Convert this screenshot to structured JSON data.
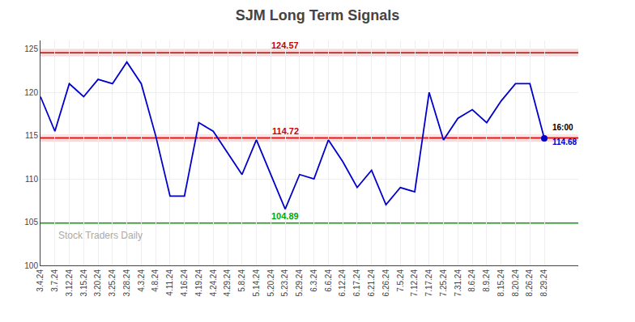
{
  "chart_data": {
    "type": "line",
    "title": "SJM Long Term Signals",
    "categories": [
      "3.4.24",
      "3.7.24",
      "3.12.24",
      "3.15.24",
      "3.20.24",
      "3.25.24",
      "3.28.24",
      "4.3.24",
      "4.8.24",
      "4.11.24",
      "4.16.24",
      "4.19.24",
      "4.24.24",
      "4.29.24",
      "5.8.24",
      "5.14.24",
      "5.20.24",
      "5.23.24",
      "5.29.24",
      "6.3.24",
      "6.6.24",
      "6.12.24",
      "6.17.24",
      "6.21.24",
      "6.26.24",
      "7.5.24",
      "7.12.24",
      "7.17.24",
      "7.25.24",
      "7.31.24",
      "8.6.24",
      "8.9.24",
      "8.15.24",
      "8.20.24",
      "8.26.24",
      "8.29.24"
    ],
    "values": [
      119.5,
      115.5,
      121.0,
      119.5,
      121.5,
      121.0,
      123.5,
      121.0,
      115.0,
      108.0,
      108.0,
      116.5,
      115.5,
      113.0,
      110.5,
      114.5,
      110.5,
      106.5,
      110.5,
      110.0,
      114.5,
      112.0,
      109.0,
      111.0,
      107.0,
      109.0,
      108.5,
      120.0,
      114.5,
      117.0,
      118.0,
      116.5,
      119.0,
      121.0,
      121.0,
      114.68
    ],
    "color": "#0000cc",
    "ylim": [
      100,
      126
    ],
    "yticks": [
      100,
      105,
      110,
      115,
      120,
      125
    ],
    "grid": true,
    "reference_lines": [
      {
        "value": 124.57,
        "label": "124.57",
        "color": "#cc0000",
        "band_half_width": 0.4
      },
      {
        "value": 114.72,
        "label": "114.72",
        "color": "#cc0000",
        "band_half_width": 0.4
      },
      {
        "value": 104.89,
        "label": "104.89",
        "color": "#00aa00"
      }
    ],
    "end_labels": [
      "16:00",
      "114.68"
    ],
    "watermark": "Stock Traders Daily"
  }
}
